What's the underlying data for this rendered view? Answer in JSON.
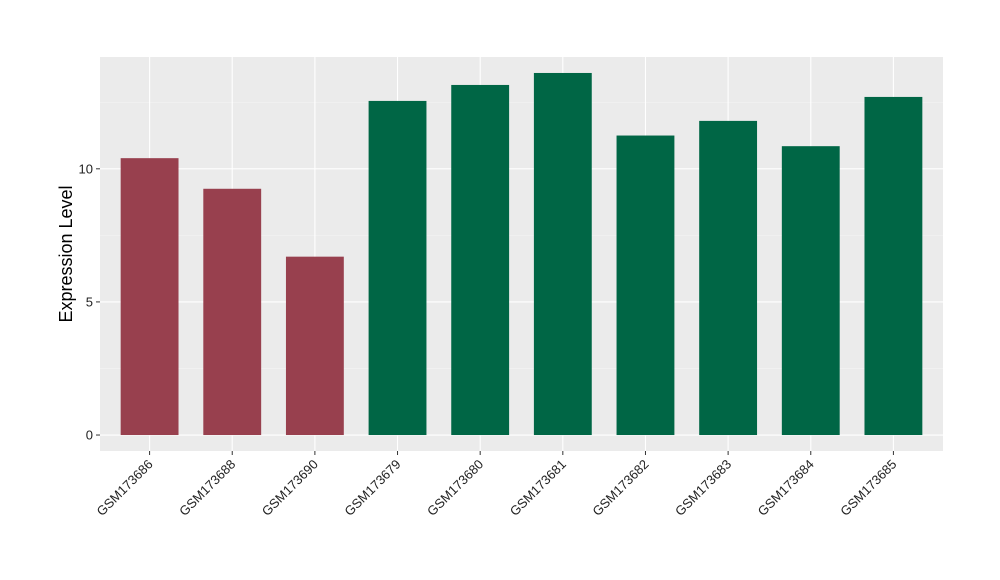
{
  "chart_data": {
    "type": "bar",
    "title": "",
    "xlabel": "",
    "ylabel": "Expression Level",
    "ylim": [
      -0.6,
      14.2
    ],
    "yticks": [
      0,
      5,
      10
    ],
    "grid": true,
    "legend": "none",
    "categories": [
      "GSM173686",
      "GSM173688",
      "GSM173690",
      "GSM173679",
      "GSM173680",
      "GSM173681",
      "GSM173682",
      "GSM173683",
      "GSM173684",
      "GSM173685"
    ],
    "values": [
      10.4,
      9.25,
      6.7,
      12.55,
      13.15,
      13.6,
      11.25,
      11.8,
      10.85,
      12.7
    ],
    "bar_colors": [
      "#98404e",
      "#98404e",
      "#98404e",
      "#006645",
      "#006645",
      "#006645",
      "#006645",
      "#006645",
      "#006645",
      "#006645"
    ]
  },
  "colors": {
    "panel_background": "#ebebeb",
    "grid_major": "#ffffff",
    "grid_minor": "#f5f5f5",
    "axis_ticks": "#333333"
  }
}
